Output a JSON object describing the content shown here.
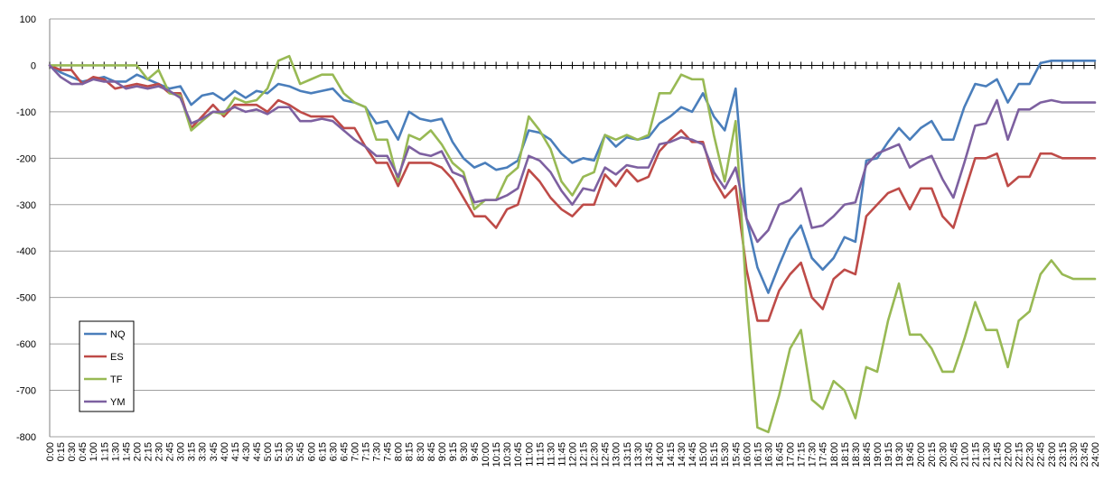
{
  "chart_data": {
    "type": "line",
    "title": "",
    "xlabel": "",
    "ylabel": "",
    "ylim": [
      -800,
      100
    ],
    "yticks": [
      100,
      0,
      -100,
      -200,
      -300,
      -400,
      -500,
      -600,
      -700,
      -800
    ],
    "grid": true,
    "legend_position": "bottom-left",
    "x": [
      "0:00",
      "0:15",
      "0:30",
      "0:45",
      "1:00",
      "1:15",
      "1:30",
      "1:45",
      "2:00",
      "2:15",
      "2:30",
      "2:45",
      "3:00",
      "3:15",
      "3:30",
      "3:45",
      "4:00",
      "4:15",
      "4:30",
      "4:45",
      "5:00",
      "5:15",
      "5:30",
      "5:45",
      "6:00",
      "6:15",
      "6:30",
      "6:45",
      "7:00",
      "7:15",
      "7:30",
      "7:45",
      "8:00",
      "8:15",
      "8:30",
      "8:45",
      "9:00",
      "9:15",
      "9:30",
      "9:45",
      "10:00",
      "10:15",
      "10:30",
      "10:45",
      "11:00",
      "11:15",
      "11:30",
      "11:45",
      "12:00",
      "12:15",
      "12:30",
      "12:45",
      "13:00",
      "13:15",
      "13:30",
      "13:45",
      "14:00",
      "14:15",
      "14:30",
      "14:45",
      "15:00",
      "15:15",
      "15:30",
      "15:45",
      "16:00",
      "16:15",
      "16:30",
      "16:45",
      "17:00",
      "17:15",
      "17:30",
      "17:45",
      "18:00",
      "18:15",
      "18:30",
      "18:45",
      "19:00",
      "19:15",
      "19:30",
      "19:45",
      "20:00",
      "20:15",
      "20:30",
      "20:45",
      "21:00",
      "21:15",
      "21:30",
      "21:45",
      "22:00",
      "22:15",
      "22:30",
      "22:45",
      "23:00",
      "23:15",
      "23:30",
      "23:45",
      "24:00"
    ],
    "series": [
      {
        "name": "NQ",
        "color": "#4a7ebb",
        "values": [
          0,
          -15,
          -25,
          -35,
          -30,
          -25,
          -35,
          -35,
          -20,
          -30,
          -40,
          -50,
          -45,
          -85,
          -65,
          -60,
          -75,
          -55,
          -70,
          -55,
          -60,
          -40,
          -45,
          -55,
          -60,
          -55,
          -50,
          -75,
          -80,
          -90,
          -125,
          -120,
          -160,
          -100,
          -115,
          -120,
          -115,
          -165,
          -200,
          -220,
          -210,
          -225,
          -220,
          -205,
          -140,
          -145,
          -160,
          -190,
          -210,
          -200,
          -205,
          -150,
          -175,
          -155,
          -160,
          -155,
          -125,
          -110,
          -90,
          -100,
          -60,
          -110,
          -140,
          -50,
          -330,
          -435,
          -490,
          -430,
          -375,
          -345,
          -415,
          -440,
          -415,
          -370,
          -380,
          -205,
          -200,
          -165,
          -135,
          -160,
          -135,
          -120,
          -160,
          -160,
          -90,
          -40,
          -45,
          -30,
          -80,
          -40,
          -40,
          5,
          10,
          10,
          10,
          10,
          10
        ]
      },
      {
        "name": "ES",
        "color": "#be4b48",
        "values": [
          0,
          -10,
          -10,
          -40,
          -25,
          -30,
          -50,
          -45,
          -40,
          -45,
          -40,
          -60,
          -60,
          -135,
          -110,
          -85,
          -110,
          -85,
          -85,
          -85,
          -100,
          -75,
          -85,
          -100,
          -110,
          -110,
          -110,
          -135,
          -135,
          -175,
          -210,
          -210,
          -260,
          -210,
          -210,
          -210,
          -220,
          -245,
          -285,
          -325,
          -325,
          -350,
          -310,
          -300,
          -225,
          -250,
          -285,
          -310,
          -325,
          -300,
          -300,
          -235,
          -260,
          -225,
          -250,
          -240,
          -185,
          -160,
          -140,
          -165,
          -165,
          -245,
          -285,
          -260,
          -440,
          -550,
          -550,
          -485,
          -450,
          -425,
          -500,
          -525,
          -460,
          -440,
          -450,
          -325,
          -300,
          -275,
          -265,
          -310,
          -265,
          -265,
          -325,
          -350,
          -275,
          -200,
          -200,
          -190,
          -260,
          -240,
          -240,
          -190,
          -190,
          -200,
          -200,
          -200,
          -200
        ]
      },
      {
        "name": "TF",
        "color": "#98b954",
        "values": [
          0,
          0,
          0,
          0,
          0,
          0,
          0,
          0,
          0,
          -30,
          -10,
          -60,
          -65,
          -140,
          -120,
          -100,
          -105,
          -70,
          -80,
          -75,
          -50,
          10,
          20,
          -40,
          -30,
          -20,
          -20,
          -60,
          -80,
          -90,
          -160,
          -160,
          -250,
          -150,
          -160,
          -140,
          -170,
          -210,
          -230,
          -310,
          -290,
          -290,
          -240,
          -220,
          -110,
          -140,
          -180,
          -250,
          -280,
          -240,
          -230,
          -150,
          -160,
          -150,
          -160,
          -150,
          -60,
          -60,
          -20,
          -30,
          -30,
          -150,
          -250,
          -120,
          -500,
          -780,
          -790,
          -710,
          -610,
          -570,
          -720,
          -740,
          -680,
          -700,
          -760,
          -650,
          -660,
          -550,
          -470,
          -580,
          -580,
          -610,
          -660,
          -660,
          -590,
          -510,
          -570,
          -570,
          -650,
          -550,
          -530,
          -450,
          -420,
          -450,
          -460,
          -460,
          -460
        ]
      },
      {
        "name": "YM",
        "color": "#7d60a0",
        "values": [
          0,
          -25,
          -40,
          -40,
          -30,
          -35,
          -35,
          -50,
          -45,
          -50,
          -45,
          -55,
          -70,
          -125,
          -115,
          -100,
          -100,
          -90,
          -100,
          -95,
          -105,
          -90,
          -90,
          -120,
          -120,
          -115,
          -120,
          -140,
          -160,
          -175,
          -195,
          -195,
          -240,
          -175,
          -190,
          -195,
          -185,
          -230,
          -240,
          -295,
          -290,
          -290,
          -280,
          -265,
          -195,
          -205,
          -230,
          -270,
          -300,
          -265,
          -270,
          -220,
          -235,
          -215,
          -220,
          -220,
          -170,
          -165,
          -155,
          -160,
          -170,
          -230,
          -265,
          -220,
          -330,
          -380,
          -355,
          -300,
          -290,
          -265,
          -350,
          -345,
          -325,
          -300,
          -295,
          -215,
          -190,
          -180,
          -170,
          -220,
          -205,
          -195,
          -245,
          -285,
          -210,
          -130,
          -125,
          -75,
          -160,
          -95,
          -95,
          -80,
          -75,
          -80,
          -80,
          -80,
          -80
        ]
      }
    ]
  }
}
